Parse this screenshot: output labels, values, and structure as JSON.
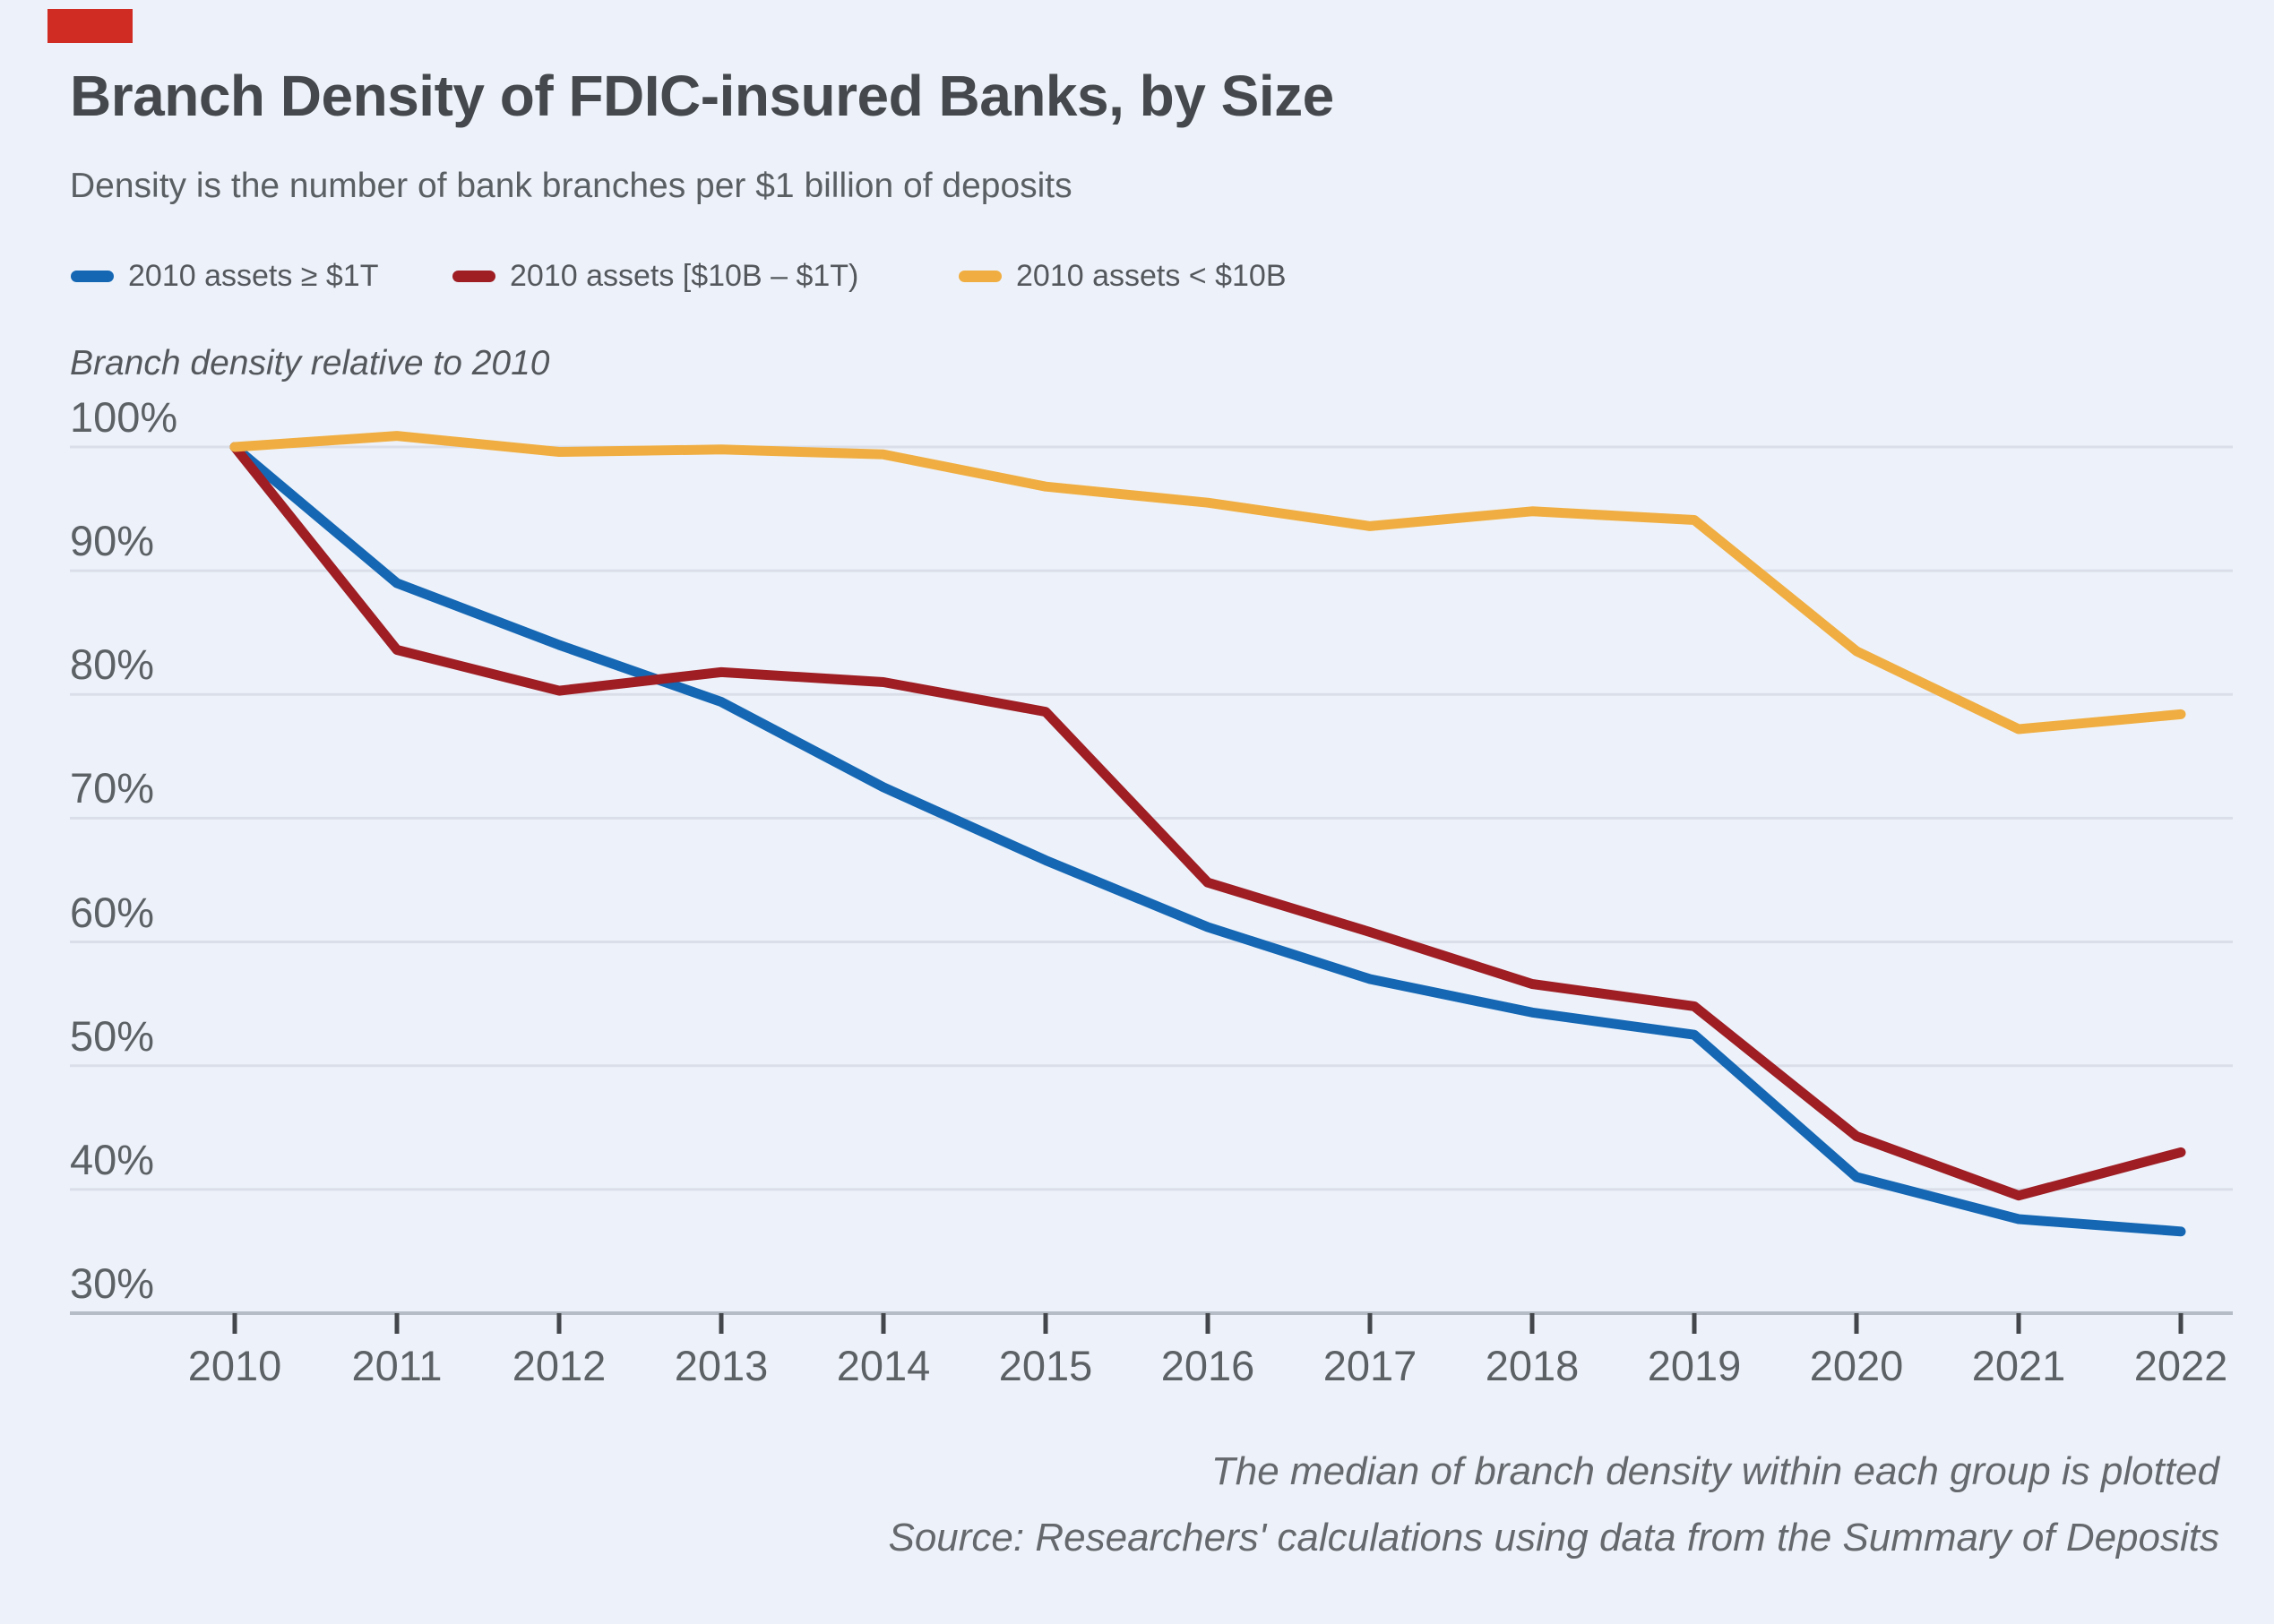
{
  "page": {
    "background": "#edf2fa"
  },
  "logo": {
    "color": "#d12c24"
  },
  "header": {
    "title": "Branch Density of FDIC-insured Banks, by Size",
    "subtitle": "Density is the number of bank branches per $1 billion of deposits"
  },
  "legend": {
    "items": [
      {
        "label": "2010 assets ≥ $1T",
        "color": "#1567b4"
      },
      {
        "label": "2010 assets [$10B – $1T)",
        "color": "#9e1e24"
      },
      {
        "label": "2010 assets < $10B",
        "color": "#f0ae42"
      }
    ]
  },
  "chart_data": {
    "type": "line",
    "title": "Branch Density of FDIC-insured Banks, by Size",
    "subtitle": "Density is the number of bank branches per $1 billion of deposits",
    "y_axis_title": "Branch density relative to 2010",
    "x": [
      2010,
      2011,
      2012,
      2013,
      2014,
      2015,
      2016,
      2017,
      2018,
      2019,
      2020,
      2021,
      2022
    ],
    "series": [
      {
        "name": "2010 assets ≥ $1T",
        "color": "#1567b4",
        "values": [
          100,
          89,
          84,
          79.4,
          72.5,
          66.6,
          61.2,
          57,
          54.3,
          52.5,
          41,
          37.6,
          36.6
        ]
      },
      {
        "name": "2010 assets [$10B – $1T)",
        "color": "#9e1e24",
        "values": [
          100,
          83.6,
          80.3,
          81.8,
          81,
          78.6,
          64.8,
          60.8,
          56.6,
          54.8,
          44.3,
          39.5,
          43
        ]
      },
      {
        "name": "2010 assets < $10B",
        "color": "#f0ae42",
        "values": [
          100,
          100.9,
          99.6,
          99.8,
          99.4,
          96.8,
          95.5,
          93.6,
          94.8,
          94.1,
          83.5,
          77.2,
          78.4
        ]
      }
    ],
    "ylim": [
      30,
      100
    ],
    "yticks": [
      100,
      90,
      80,
      70,
      60,
      50,
      40,
      30
    ],
    "ytick_labels": [
      "100%",
      "90%",
      "80%",
      "70%",
      "60%",
      "50%",
      "40%",
      "30%"
    ],
    "xtick_labels": [
      "2010",
      "2011",
      "2012",
      "2013",
      "2014",
      "2015",
      "2016",
      "2017",
      "2018",
      "2019",
      "2020",
      "2021",
      "2022"
    ],
    "grid": "horizontal",
    "legend_position": "top",
    "values_unit": "%"
  },
  "footer": {
    "note": "The median of branch density within each group is plotted",
    "source": "Source: Researchers' calculations using data from the Summary of Deposits"
  },
  "colors": {
    "gridline": "#d9dee8",
    "baseline": "#b6bcc6",
    "tick": "#43474b"
  }
}
